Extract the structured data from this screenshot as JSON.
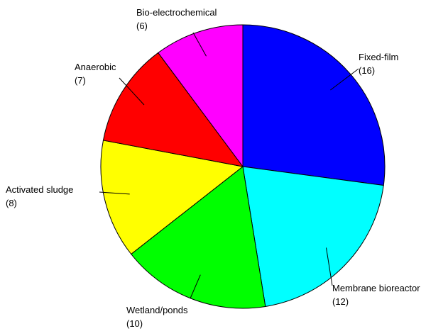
{
  "chart_data": {
    "type": "pie",
    "start": "12 o'clock",
    "direction": "clockwise",
    "slices": [
      {
        "category": "Fixed-film",
        "count_label": "(16)",
        "value": 16,
        "color": "#0000ff"
      },
      {
        "category": "Membrane bioreactor",
        "count_label": "(12)",
        "value": 12,
        "color": "#00ffff"
      },
      {
        "category": "Wetland/ponds",
        "count_label": "(10)",
        "value": 10,
        "color": "#00ff00"
      },
      {
        "category": "Activated sludge",
        "count_label": "(8)",
        "value": 8,
        "color": "#ffff00"
      },
      {
        "category": "Anaerobic",
        "count_label": "(7)",
        "value": 7,
        "color": "#ff0000"
      },
      {
        "category": "Bio-electrochemical",
        "count_label": "(6)",
        "value": 6,
        "color": "#ff00ff"
      }
    ]
  }
}
